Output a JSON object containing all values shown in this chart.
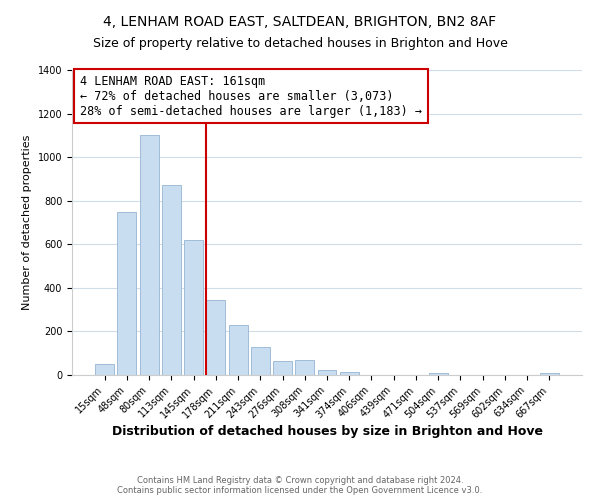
{
  "title": "4, LENHAM ROAD EAST, SALTDEAN, BRIGHTON, BN2 8AF",
  "subtitle": "Size of property relative to detached houses in Brighton and Hove",
  "xlabel": "Distribution of detached houses by size in Brighton and Hove",
  "ylabel": "Number of detached properties",
  "bar_labels": [
    "15sqm",
    "48sqm",
    "80sqm",
    "113sqm",
    "145sqm",
    "178sqm",
    "211sqm",
    "243sqm",
    "276sqm",
    "308sqm",
    "341sqm",
    "374sqm",
    "406sqm",
    "439sqm",
    "471sqm",
    "504sqm",
    "537sqm",
    "569sqm",
    "602sqm",
    "634sqm",
    "667sqm"
  ],
  "bar_values": [
    50,
    750,
    1100,
    870,
    620,
    345,
    230,
    130,
    65,
    70,
    25,
    15,
    0,
    0,
    0,
    10,
    0,
    0,
    0,
    0,
    10
  ],
  "bar_color": "#c9ddf0",
  "bar_edge_color": "#a0bcd8",
  "vline_x": 4.545,
  "vline_color": "#cc0000",
  "annotation_title": "4 LENHAM ROAD EAST: 161sqm",
  "annotation_line1": "← 72% of detached houses are smaller (3,073)",
  "annotation_line2": "28% of semi-detached houses are larger (1,183) →",
  "annotation_box_color": "#ffffff",
  "annotation_box_edge": "#cc0000",
  "ylim": [
    0,
    1400
  ],
  "footer1": "Contains HM Land Registry data © Crown copyright and database right 2024.",
  "footer2": "Contains public sector information licensed under the Open Government Licence v3.0.",
  "background_color": "#ffffff",
  "title_fontsize": 10,
  "subtitle_fontsize": 9,
  "xlabel_fontsize": 9,
  "ylabel_fontsize": 8,
  "tick_fontsize": 7,
  "footer_fontsize": 6
}
